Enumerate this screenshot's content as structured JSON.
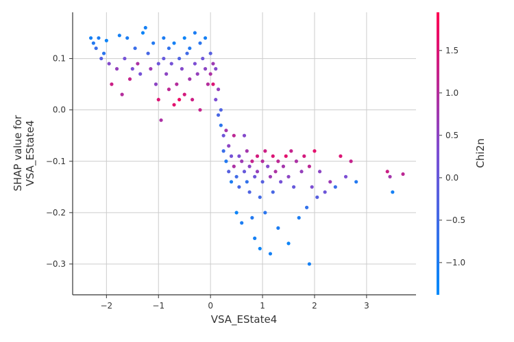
{
  "chart_data": {
    "type": "scatter",
    "title": "",
    "xlabel": "VSA_EState4",
    "ylabel_lines": [
      "SHAP value for",
      "VSA_EState4"
    ],
    "xlim": [
      -2.65,
      3.95
    ],
    "ylim": [
      -0.36,
      0.19
    ],
    "xticks": [
      -2,
      -1,
      0,
      1,
      2,
      3
    ],
    "xtick_labels": [
      "−2",
      "−1",
      "0",
      "1",
      "2",
      "3"
    ],
    "yticks": [
      -0.3,
      -0.2,
      -0.1,
      0.0,
      0.1
    ],
    "ytick_labels": [
      "−0.3",
      "−0.2",
      "−0.1",
      "0.0",
      "0.1"
    ],
    "grid": true,
    "colorbar": {
      "label": "Chi2n",
      "vmin": -1.38,
      "vmax": 1.95,
      "ticks": [
        -1.0,
        -0.5,
        0.0,
        0.5,
        1.0,
        1.5
      ],
      "tick_labels": [
        "−1.0",
        "−0.5",
        "0.0",
        "0.5",
        "1.0",
        "1.5"
      ],
      "colors": [
        "#008afb",
        "#7b4fd4",
        "#ff0052"
      ]
    },
    "points": [
      [
        -2.3,
        0.14,
        -1.1
      ],
      [
        -2.25,
        0.13,
        -0.9
      ],
      [
        -2.2,
        0.12,
        -0.6
      ],
      [
        -2.15,
        0.14,
        -1.0
      ],
      [
        -2.1,
        0.1,
        -0.2
      ],
      [
        -2.05,
        0.11,
        -0.8
      ],
      [
        -2.0,
        0.135,
        -1.2
      ],
      [
        -1.95,
        0.09,
        0.4
      ],
      [
        -1.9,
        0.05,
        1.3
      ],
      [
        -1.8,
        0.08,
        0.6
      ],
      [
        -1.75,
        0.145,
        -1.1
      ],
      [
        -1.7,
        0.03,
        1.0
      ],
      [
        -1.65,
        0.1,
        0.2
      ],
      [
        -1.6,
        0.14,
        -1.0
      ],
      [
        -1.55,
        0.06,
        1.2
      ],
      [
        -1.5,
        0.08,
        0.3
      ],
      [
        -1.45,
        0.12,
        -0.6
      ],
      [
        -1.4,
        0.09,
        0.9
      ],
      [
        -1.35,
        0.07,
        0.2
      ],
      [
        -1.3,
        0.15,
        -1.2
      ],
      [
        -1.25,
        0.16,
        -1.1
      ],
      [
        -1.2,
        0.11,
        -0.4
      ],
      [
        -1.15,
        0.08,
        0.7
      ],
      [
        -1.1,
        0.13,
        -0.9
      ],
      [
        -1.05,
        0.05,
        0.5
      ],
      [
        -1.0,
        0.02,
        1.5
      ],
      [
        -1.0,
        0.09,
        0.1
      ],
      [
        -0.95,
        -0.02,
        0.9
      ],
      [
        -0.9,
        0.1,
        0.0
      ],
      [
        -0.9,
        0.14,
        -1.0
      ],
      [
        -0.85,
        0.07,
        0.5
      ],
      [
        -0.8,
        0.04,
        1.1
      ],
      [
        -0.8,
        0.12,
        -0.7
      ],
      [
        -0.75,
        0.09,
        0.2
      ],
      [
        -0.7,
        0.01,
        1.6
      ],
      [
        -0.7,
        0.13,
        -1.1
      ],
      [
        -0.65,
        0.05,
        1.0
      ],
      [
        -0.6,
        0.1,
        -0.3
      ],
      [
        -0.6,
        0.02,
        1.7
      ],
      [
        -0.55,
        0.08,
        0.4
      ],
      [
        -0.5,
        0.14,
        -1.2
      ],
      [
        -0.5,
        0.03,
        1.4
      ],
      [
        -0.45,
        0.11,
        -0.5
      ],
      [
        -0.4,
        0.06,
        0.8
      ],
      [
        -0.4,
        0.12,
        -0.9
      ],
      [
        -0.35,
        0.02,
        1.3
      ],
      [
        -0.3,
        0.09,
        0.3
      ],
      [
        -0.3,
        0.15,
        -1.0
      ],
      [
        -0.25,
        0.07,
        0.6
      ],
      [
        -0.2,
        0.0,
        1.2
      ],
      [
        -0.2,
        0.13,
        -0.8
      ],
      [
        -0.15,
        0.1,
        0.1
      ],
      [
        -0.1,
        0.08,
        0.5
      ],
      [
        -0.1,
        0.14,
        -1.1
      ],
      [
        -0.05,
        0.05,
        1.0
      ],
      [
        0.0,
        0.11,
        -0.2
      ],
      [
        0.0,
        0.07,
        0.9
      ],
      [
        0.05,
        0.09,
        0.7
      ],
      [
        0.05,
        0.05,
        1.5
      ],
      [
        0.1,
        0.08,
        0.4
      ],
      [
        0.1,
        0.02,
        0.3
      ],
      [
        0.15,
        -0.01,
        -0.4
      ],
      [
        0.15,
        0.04,
        0.6
      ],
      [
        0.2,
        0.0,
        -0.3
      ],
      [
        0.2,
        -0.03,
        -0.8
      ],
      [
        0.25,
        -0.05,
        0.1
      ],
      [
        0.25,
        -0.08,
        -0.6
      ],
      [
        0.3,
        -0.04,
        0.8
      ],
      [
        0.3,
        -0.1,
        -0.9
      ],
      [
        0.35,
        -0.12,
        -0.2
      ],
      [
        0.35,
        -0.07,
        0.5
      ],
      [
        0.4,
        -0.14,
        -1.0
      ],
      [
        0.4,
        -0.09,
        0.2
      ],
      [
        0.45,
        -0.11,
        0.9
      ],
      [
        0.45,
        -0.05,
        1.1
      ],
      [
        0.5,
        -0.13,
        -0.5
      ],
      [
        0.5,
        -0.2,
        -1.2
      ],
      [
        0.55,
        -0.09,
        0.3
      ],
      [
        0.55,
        -0.15,
        -0.4
      ],
      [
        0.6,
        -0.1,
        0.7
      ],
      [
        0.6,
        -0.22,
        -1.0
      ],
      [
        0.65,
        -0.12,
        0.0
      ],
      [
        0.65,
        -0.05,
        0.4
      ],
      [
        0.7,
        -0.14,
        -0.7
      ],
      [
        0.7,
        -0.08,
        0.8
      ],
      [
        0.75,
        -0.16,
        -0.3
      ],
      [
        0.75,
        -0.11,
        0.5
      ],
      [
        0.8,
        -0.1,
        1.2
      ],
      [
        0.8,
        -0.21,
        -0.9
      ],
      [
        0.85,
        -0.13,
        0.1
      ],
      [
        0.85,
        -0.25,
        -1.1
      ],
      [
        0.9,
        -0.09,
        1.4
      ],
      [
        0.9,
        -0.12,
        0.6
      ],
      [
        0.95,
        -0.17,
        -0.5
      ],
      [
        0.95,
        -0.27,
        -1.2
      ],
      [
        1.0,
        -0.1,
        1.0
      ],
      [
        1.0,
        -0.14,
        -0.2
      ],
      [
        1.05,
        -0.08,
        1.3
      ],
      [
        1.05,
        -0.2,
        -0.8
      ],
      [
        1.1,
        -0.11,
        0.4
      ],
      [
        1.15,
        -0.13,
        0.7
      ],
      [
        1.15,
        -0.28,
        -1.1
      ],
      [
        1.2,
        -0.09,
        1.5
      ],
      [
        1.2,
        -0.16,
        -0.4
      ],
      [
        1.25,
        -0.12,
        0.9
      ],
      [
        1.3,
        -0.1,
        1.1
      ],
      [
        1.3,
        -0.23,
        -1.0
      ],
      [
        1.35,
        -0.14,
        0.2
      ],
      [
        1.4,
        -0.11,
        0.8
      ],
      [
        1.45,
        -0.09,
        1.6
      ],
      [
        1.5,
        -0.13,
        0.5
      ],
      [
        1.5,
        -0.26,
        -1.2
      ],
      [
        1.55,
        -0.08,
        1.2
      ],
      [
        1.6,
        -0.15,
        0.0
      ],
      [
        1.65,
        -0.1,
        0.9
      ],
      [
        1.7,
        -0.21,
        -1.0
      ],
      [
        1.75,
        -0.12,
        0.6
      ],
      [
        1.8,
        -0.09,
        1.4
      ],
      [
        1.85,
        -0.19,
        -0.7
      ],
      [
        1.9,
        -0.11,
        1.1
      ],
      [
        1.9,
        -0.3,
        -1.1
      ],
      [
        1.95,
        -0.15,
        0.3
      ],
      [
        2.0,
        -0.08,
        1.6
      ],
      [
        2.05,
        -0.17,
        -0.2
      ],
      [
        2.1,
        -0.12,
        0.5
      ],
      [
        2.2,
        -0.16,
        0.1
      ],
      [
        2.3,
        -0.14,
        0.7
      ],
      [
        2.4,
        -0.15,
        -0.6
      ],
      [
        2.5,
        -0.09,
        1.5
      ],
      [
        2.6,
        -0.13,
        0.3
      ],
      [
        2.7,
        -0.1,
        1.2
      ],
      [
        2.8,
        -0.14,
        -0.9
      ],
      [
        3.4,
        -0.12,
        1.3
      ],
      [
        3.45,
        -0.13,
        0.8
      ],
      [
        3.5,
        -0.16,
        -1.1
      ],
      [
        3.7,
        -0.125,
        1.1
      ]
    ]
  }
}
